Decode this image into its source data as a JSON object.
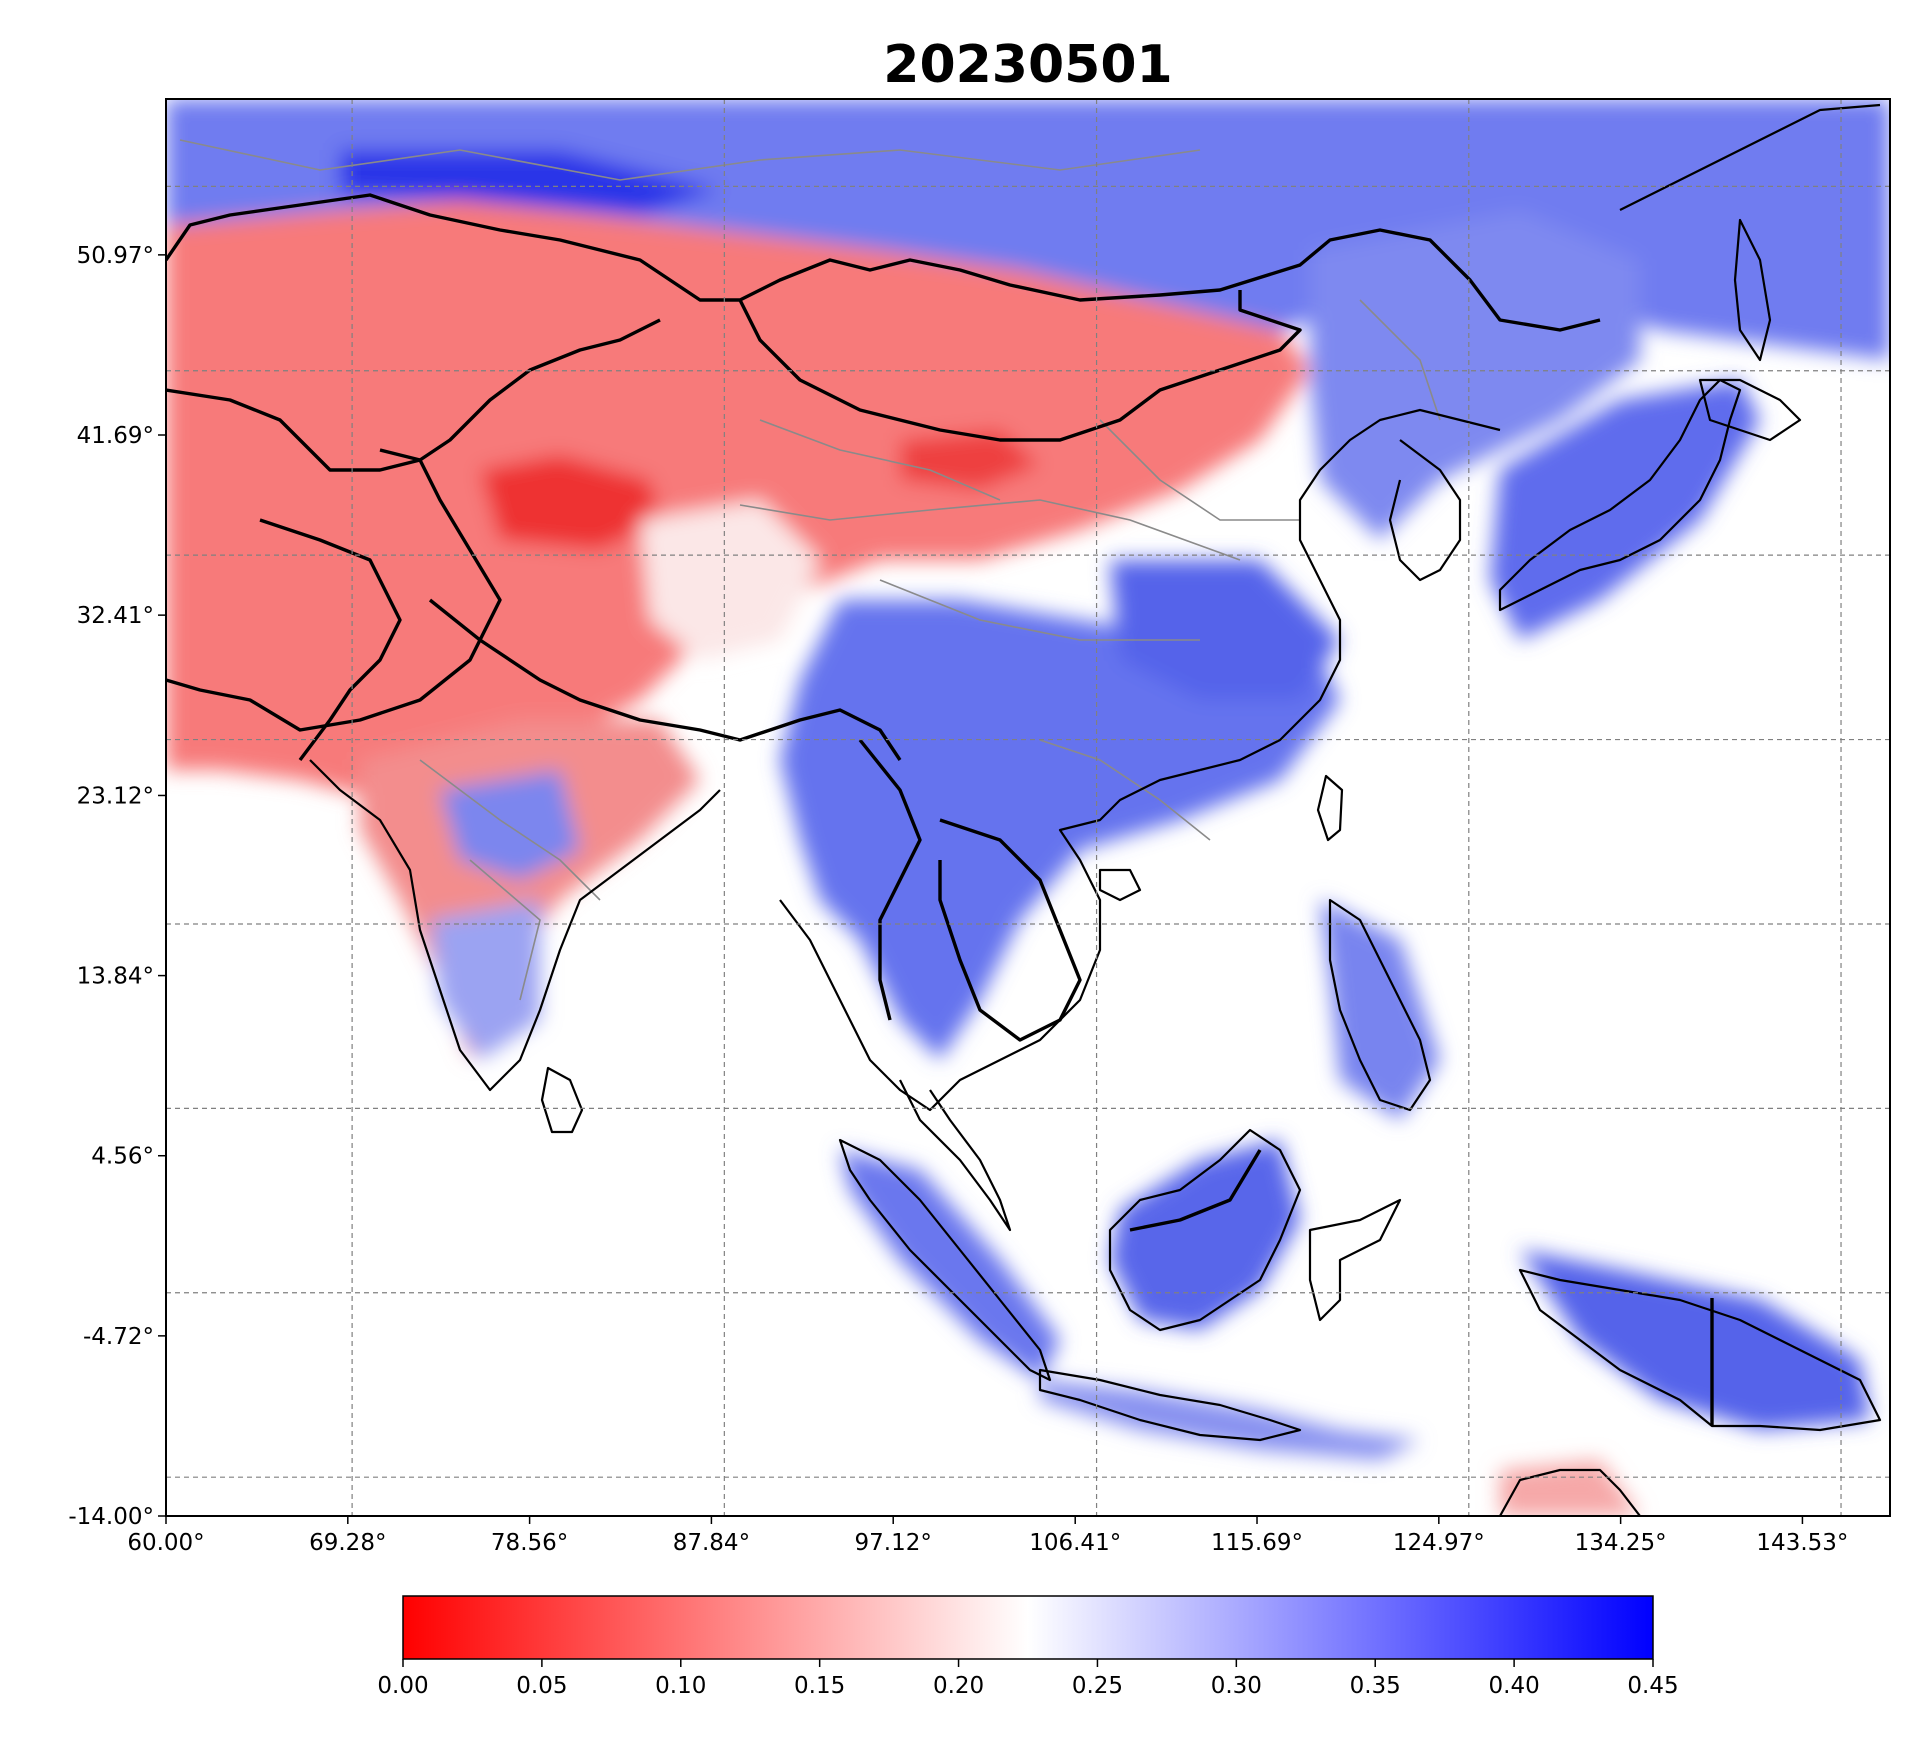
{
  "chart_data": {
    "type": "heatmap",
    "title": "20230501",
    "x_ticks": [
      "60.00°",
      "69.28°",
      "78.56°",
      "87.84°",
      "97.12°",
      "106.41°",
      "115.69°",
      "124.97°",
      "134.25°",
      "143.53°"
    ],
    "y_ticks": [
      "50.97°",
      "41.69°",
      "32.41°",
      "23.12°",
      "13.84°",
      "4.56°",
      "-4.72°",
      "-14.00°"
    ],
    "lon_range": [
      60.0,
      148.0
    ],
    "lat_range": [
      -14.0,
      59.0
    ],
    "colorbar": {
      "ticks": [
        "0.00",
        "0.05",
        "0.10",
        "0.15",
        "0.20",
        "0.25",
        "0.30",
        "0.35",
        "0.40",
        "0.45"
      ],
      "range": [
        0.0,
        0.45
      ],
      "colors": [
        "#ff0000",
        "#ffffff",
        "#0000ff"
      ],
      "orientation": "horizontal"
    },
    "grid": true
  }
}
